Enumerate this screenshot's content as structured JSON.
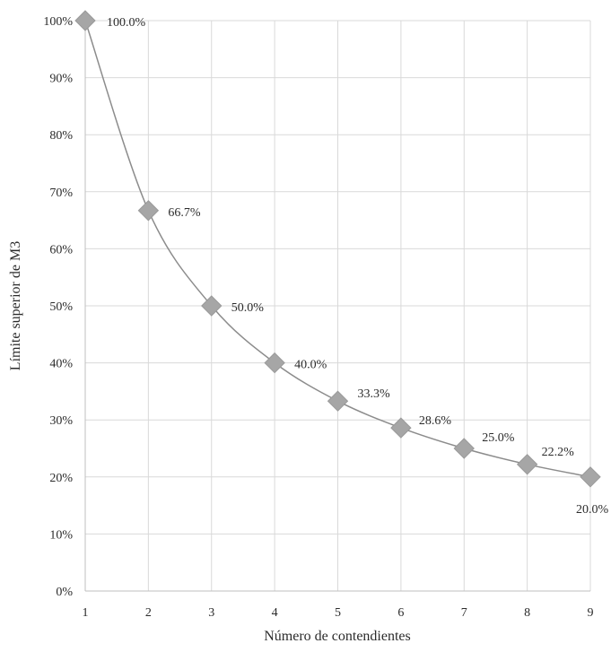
{
  "chart_data": {
    "type": "line",
    "title": "",
    "xlabel": "Número de contendientes",
    "ylabel": "Límite superior de M3",
    "categories": [
      "1",
      "2",
      "3",
      "4",
      "5",
      "6",
      "7",
      "8",
      "9"
    ],
    "x": [
      1,
      2,
      3,
      4,
      5,
      6,
      7,
      8,
      9
    ],
    "series": [
      {
        "name": "Límite superior de M3",
        "values": [
          100.0,
          66.7,
          50.0,
          40.0,
          33.3,
          28.6,
          25.0,
          22.2,
          20.0
        ],
        "labels": [
          "100.0%",
          "66.7%",
          "50.0%",
          "40.0%",
          "33.3%",
          "28.6%",
          "25.0%",
          "22.2%",
          "20.0%"
        ],
        "marker": "diamond",
        "color": "#a6a6a6"
      }
    ],
    "ylim": [
      0,
      100
    ],
    "yticks": [
      0,
      10,
      20,
      30,
      40,
      50,
      60,
      70,
      80,
      90,
      100
    ],
    "ytick_labels": [
      "0%",
      "10%",
      "20%",
      "30%",
      "40%",
      "50%",
      "60%",
      "70%",
      "80%",
      "90%",
      "100%"
    ],
    "xlim": [
      1,
      9
    ],
    "grid": true,
    "grid_color": "#d9d9d9",
    "line_color": "#8c8c8c"
  }
}
